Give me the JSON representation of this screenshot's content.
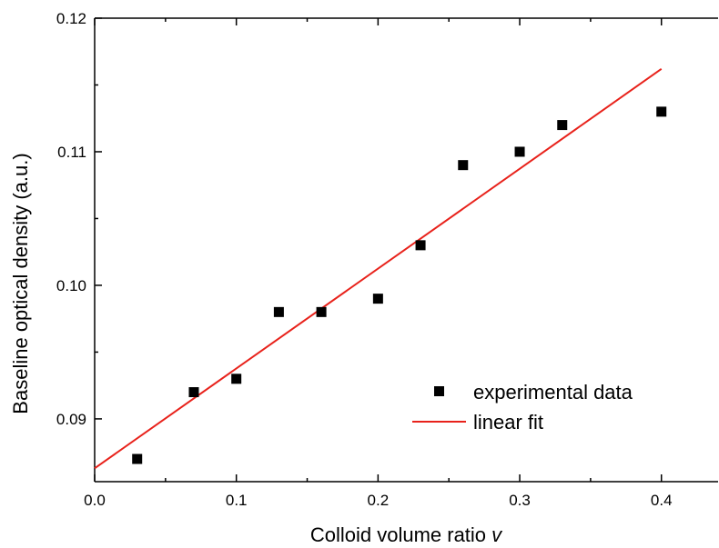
{
  "chart_data": {
    "type": "scatter",
    "xlabel": "Colloid volume ratio ",
    "xlabel_var": "v",
    "ylabel": "Baseline optical density (a.u.)",
    "xlim": [
      0.0,
      0.44
    ],
    "ylim": [
      0.0853,
      0.12
    ],
    "x_ticks": [
      0.0,
      0.1,
      0.2,
      0.3,
      0.4
    ],
    "x_tick_labels": [
      "0.0",
      "0.1",
      "0.2",
      "0.3",
      "0.4"
    ],
    "y_ticks": [
      0.09,
      0.1,
      0.11,
      0.12
    ],
    "y_tick_labels": [
      "0.09",
      "0.10",
      "0.11",
      "0.12"
    ],
    "grid": false,
    "legend_position": "bottom-right",
    "series": [
      {
        "name": "experimental data",
        "kind": "scatter",
        "marker": "square",
        "color": "#000000",
        "x": [
          0.03,
          0.07,
          0.1,
          0.13,
          0.16,
          0.2,
          0.23,
          0.26,
          0.3,
          0.33,
          0.4
        ],
        "y": [
          0.087,
          0.092,
          0.093,
          0.098,
          0.098,
          0.099,
          0.103,
          0.109,
          0.11,
          0.112,
          0.113
        ]
      },
      {
        "name": "linear fit",
        "kind": "line",
        "color": "#e8221b",
        "x": [
          0.0,
          0.4
        ],
        "y": [
          0.0863,
          0.1162
        ]
      }
    ]
  }
}
